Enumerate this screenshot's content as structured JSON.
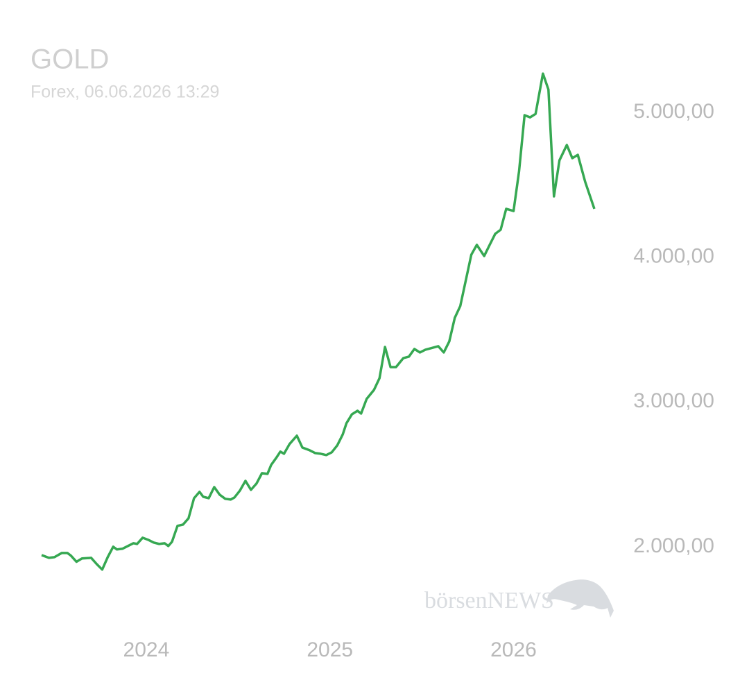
{
  "chart_data": {
    "type": "line",
    "title": "GOLD",
    "subtitle": "Forex, 06.06.2026 13:29",
    "watermark": "börsenNEWS",
    "x": [
      2023.43,
      2023.47,
      2023.5,
      2023.54,
      2023.57,
      2023.59,
      2023.62,
      2023.65,
      2023.7,
      2023.73,
      2023.76,
      2023.79,
      2023.82,
      2023.84,
      2023.87,
      2023.9,
      2023.93,
      2023.95,
      2023.98,
      2024.01,
      2024.04,
      2024.07,
      2024.1,
      2024.12,
      2024.14,
      2024.17,
      2024.2,
      2024.23,
      2024.26,
      2024.29,
      2024.31,
      2024.34,
      2024.37,
      2024.4,
      2024.43,
      2024.46,
      2024.48,
      2024.51,
      2024.54,
      2024.57,
      2024.6,
      2024.63,
      2024.66,
      2024.68,
      2024.71,
      2024.73,
      2024.75,
      2024.78,
      2024.82,
      2024.85,
      2024.89,
      2024.92,
      2024.95,
      2024.98,
      2025.01,
      2025.04,
      2025.07,
      2025.09,
      2025.12,
      2025.15,
      2025.17,
      2025.2,
      2025.24,
      2025.27,
      2025.3,
      2025.33,
      2025.36,
      2025.4,
      2025.43,
      2025.46,
      2025.49,
      2025.52,
      2025.55,
      2025.59,
      2025.62,
      2025.65,
      2025.68,
      2025.71,
      2025.74,
      2025.77,
      2025.8,
      2025.84,
      2025.87,
      2025.9,
      2025.93,
      2025.96,
      2026.0,
      2026.03,
      2026.06,
      2026.09,
      2026.12,
      2026.16,
      2026.19,
      2026.22,
      2026.25,
      2026.29,
      2026.32,
      2026.35,
      2026.39,
      2026.44
    ],
    "series": [
      {
        "name": "GOLD",
        "color": "#36a852",
        "values": [
          1942,
          1923,
          1928,
          1957,
          1957,
          1938,
          1896,
          1919,
          1923,
          1880,
          1842,
          1928,
          2000,
          1981,
          1986,
          2005,
          2024,
          2019,
          2062,
          2048,
          2029,
          2019,
          2024,
          2005,
          2034,
          2144,
          2153,
          2196,
          2335,
          2379,
          2345,
          2335,
          2412,
          2359,
          2331,
          2326,
          2340,
          2388,
          2455,
          2393,
          2436,
          2508,
          2503,
          2565,
          2618,
          2657,
          2642,
          2709,
          2767,
          2685,
          2666,
          2647,
          2642,
          2633,
          2652,
          2700,
          2776,
          2853,
          2915,
          2939,
          2920,
          3021,
          3083,
          3164,
          3380,
          3241,
          3241,
          3303,
          3313,
          3366,
          3342,
          3361,
          3371,
          3385,
          3342,
          3418,
          3581,
          3663,
          3840,
          4017,
          4085,
          4008,
          4085,
          4161,
          4190,
          4334,
          4319,
          4593,
          4981,
          4966,
          4990,
          5268,
          5158,
          4420,
          4669,
          4775,
          4684,
          4707,
          4521,
          4334
        ]
      }
    ],
    "xlim": [
      2023.43,
      2026.44
    ],
    "xticks": [
      2024,
      2025,
      2026
    ],
    "ylim": [
      1750,
      5350
    ],
    "yticks": [
      {
        "value": 2000,
        "label": "2.000,00"
      },
      {
        "value": 3000,
        "label": "3.000,00"
      },
      {
        "value": 4000,
        "label": "4.000,00"
      },
      {
        "value": 5000,
        "label": "5.000,00"
      }
    ],
    "grid": false
  }
}
